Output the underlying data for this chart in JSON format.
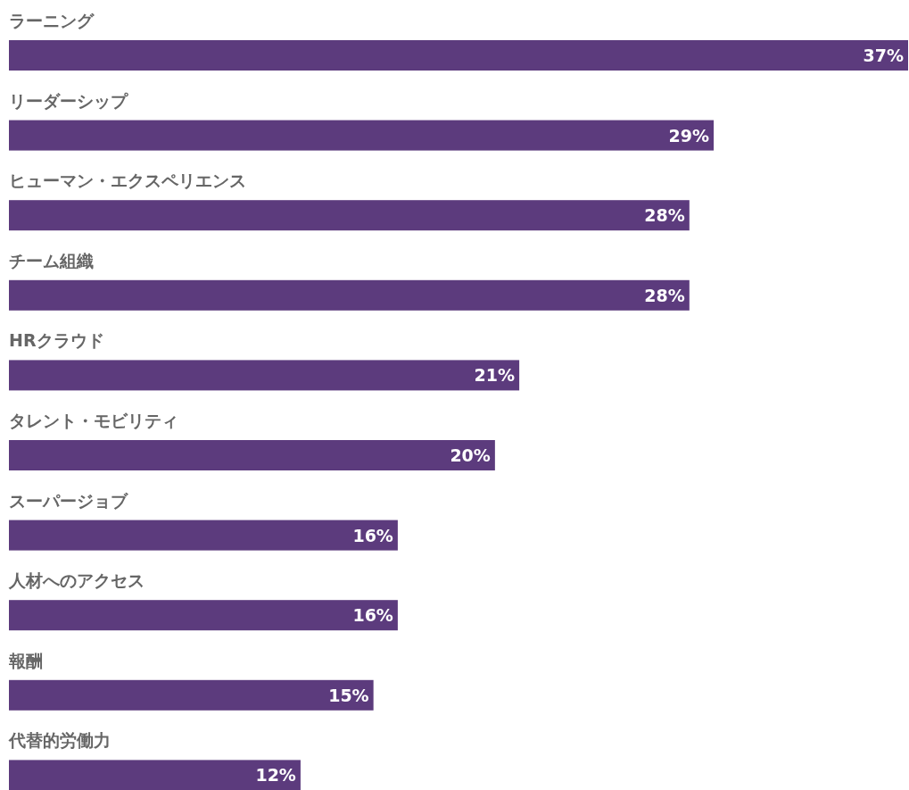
{
  "chart_data": {
    "type": "bar",
    "orientation": "horizontal",
    "categories": [
      "ラーニング",
      "リーダーシップ",
      "ヒューマン・エクスペリエンス",
      "チーム組織",
      "HRクラウド",
      "タレント・モビリティ",
      "スーパージョブ",
      "人材へのアクセス",
      "報酬",
      "代替的労働力"
    ],
    "values": [
      37,
      29,
      28,
      28,
      21,
      20,
      16,
      16,
      15,
      12
    ],
    "value_labels": [
      "37%",
      "29%",
      "28%",
      "28%",
      "21%",
      "20%",
      "16%",
      "16%",
      "15%",
      "12%"
    ],
    "color": "#5c3b7d"
  }
}
